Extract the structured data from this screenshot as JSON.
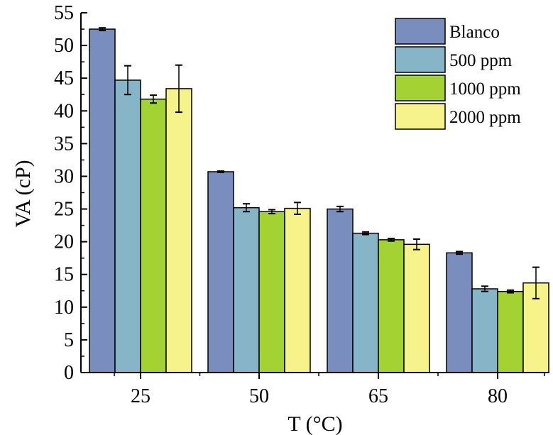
{
  "chart_data": {
    "type": "bar",
    "title": "",
    "xlabel": "T (°C)",
    "ylabel": "VA (cP)",
    "categories": [
      "25",
      "50",
      "65",
      "80"
    ],
    "ylim": [
      0,
      55
    ],
    "yticks": [
      0,
      5,
      10,
      15,
      20,
      25,
      30,
      35,
      40,
      45,
      50,
      55
    ],
    "legend_position": "top-right",
    "grid": false,
    "series": [
      {
        "name": "Blanco",
        "color": "#7a8dbf",
        "values": [
          52.5,
          30.7,
          25.0,
          18.3
        ],
        "errors": [
          0.2,
          0.1,
          0.4,
          0.2
        ]
      },
      {
        "name": "500 ppm",
        "color": "#87b5c8",
        "values": [
          44.7,
          25.2,
          21.3,
          12.8
        ],
        "errors": [
          2.2,
          0.6,
          0.2,
          0.4
        ]
      },
      {
        "name": "1000 ppm",
        "color": "#a3d333",
        "values": [
          41.8,
          24.6,
          20.3,
          12.4
        ],
        "errors": [
          0.6,
          0.3,
          0.2,
          0.2
        ]
      },
      {
        "name": "2000 ppm",
        "color": "#f7f38b",
        "values": [
          43.4,
          25.1,
          19.6,
          13.7
        ],
        "errors": [
          3.6,
          0.9,
          0.8,
          2.4
        ]
      }
    ]
  }
}
